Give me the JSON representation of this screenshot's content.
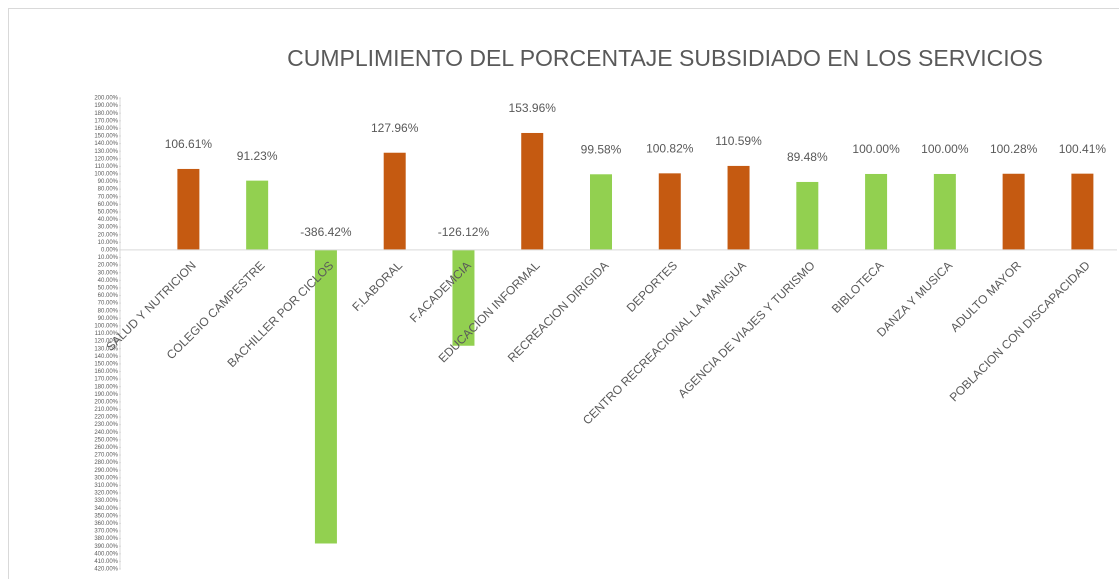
{
  "chart_data": {
    "type": "bar",
    "title": "CUMPLIMIENTO DEL PORCENTAJE SUBSIDIADO EN LOS SERVICIOS",
    "categories": [
      "SALUD Y NUTRICION",
      "COLEGIO CAMPESTRE",
      "BACHILLER POR CICLOS",
      "F.LABORAL",
      "F.ACADEMCIA",
      "EDUCACION INFORMAL",
      "RECREACION DIRIGIDA",
      "DEPORTES",
      "CENTRO RECREACIONAL LA MANIGUA",
      "AGENCIA DE VIAJES Y TURISMO",
      "BIBLOTECA",
      "DANZA Y MUSICA",
      "ADULTO MAYOR",
      "POBLACION CON DISCAPACIDAD"
    ],
    "values": [
      106.61,
      91.23,
      -386.42,
      127.96,
      -126.12,
      153.96,
      99.58,
      100.82,
      110.59,
      89.48,
      100.0,
      100.0,
      100.28,
      100.41
    ],
    "value_labels": [
      "106.61%",
      "91.23%",
      "-386.42%",
      "127.96%",
      "-126.12%",
      "153.96%",
      "99.58%",
      "100.82%",
      "110.59%",
      "89.48%",
      "100.00%",
      "100.00%",
      "100.28%",
      "100.41%"
    ],
    "colors": [
      "#c55a11",
      "#92d050",
      "#92d050",
      "#c55a11",
      "#92d050",
      "#c55a11",
      "#92d050",
      "#c55a11",
      "#c55a11",
      "#92d050",
      "#92d050",
      "#92d050",
      "#c55a11",
      "#c55a11"
    ],
    "ylim": [
      -420,
      200
    ],
    "yticks": [
      {
        "value": 200,
        "label": "200.00%"
      },
      {
        "value": 190,
        "label": "190.00%"
      },
      {
        "value": 180,
        "label": "180.00%"
      },
      {
        "value": 170,
        "label": "170.00%"
      },
      {
        "value": 160,
        "label": "160.00%"
      },
      {
        "value": 150,
        "label": "150.00%"
      },
      {
        "value": 140,
        "label": "140.00%"
      },
      {
        "value": 130,
        "label": "130.00%"
      },
      {
        "value": 120,
        "label": "120.00%"
      },
      {
        "value": 110,
        "label": "110.00%"
      },
      {
        "value": 100,
        "label": "100.00%"
      },
      {
        "value": 90,
        "label": "90.00%"
      },
      {
        "value": 80,
        "label": "80.00%"
      },
      {
        "value": 70,
        "label": "70.00%"
      },
      {
        "value": 60,
        "label": "60.00%"
      },
      {
        "value": 50,
        "label": "50.00%"
      },
      {
        "value": 40,
        "label": "40.00%"
      },
      {
        "value": 30,
        "label": "30.00%"
      },
      {
        "value": 20,
        "label": "20.00%"
      },
      {
        "value": 10,
        "label": "10.00%"
      },
      {
        "value": 0,
        "label": "0.00%"
      },
      {
        "value": -10,
        "label": "10.00%"
      },
      {
        "value": -20,
        "label": "20.00%"
      },
      {
        "value": -30,
        "label": "30.00%"
      },
      {
        "value": -40,
        "label": "40.00%"
      },
      {
        "value": -50,
        "label": "50.00%"
      },
      {
        "value": -60,
        "label": "60.00%"
      },
      {
        "value": -70,
        "label": "70.00%"
      },
      {
        "value": -80,
        "label": "80.00%"
      },
      {
        "value": -90,
        "label": "90.00%"
      },
      {
        "value": -100,
        "label": "100.00%"
      },
      {
        "value": -110,
        "label": "110.00%"
      },
      {
        "value": -120,
        "label": "120.00%"
      },
      {
        "value": -130,
        "label": "130.00%"
      },
      {
        "value": -140,
        "label": "140.00%"
      },
      {
        "value": -150,
        "label": "150.00%"
      },
      {
        "value": -160,
        "label": "160.00%"
      },
      {
        "value": -170,
        "label": "170.00%"
      },
      {
        "value": -180,
        "label": "180.00%"
      },
      {
        "value": -190,
        "label": "190.00%"
      },
      {
        "value": -200,
        "label": "200.00%"
      },
      {
        "value": -210,
        "label": "210.00%"
      },
      {
        "value": -220,
        "label": "220.00%"
      },
      {
        "value": -230,
        "label": "230.00%"
      },
      {
        "value": -240,
        "label": "240.00%"
      },
      {
        "value": -250,
        "label": "250.00%"
      },
      {
        "value": -260,
        "label": "260.00%"
      },
      {
        "value": -270,
        "label": "270.00%"
      },
      {
        "value": -280,
        "label": "280.00%"
      },
      {
        "value": -290,
        "label": "290.00%"
      },
      {
        "value": -300,
        "label": "300.00%"
      },
      {
        "value": -310,
        "label": "310.00%"
      },
      {
        "value": -320,
        "label": "320.00%"
      },
      {
        "value": -330,
        "label": "330.00%"
      },
      {
        "value": -340,
        "label": "340.00%"
      },
      {
        "value": -350,
        "label": "350.00%"
      },
      {
        "value": -360,
        "label": "360.00%"
      },
      {
        "value": -370,
        "label": "370.00%"
      },
      {
        "value": -380,
        "label": "380.00%"
      },
      {
        "value": -390,
        "label": "390.00%"
      },
      {
        "value": -400,
        "label": "400.00%"
      },
      {
        "value": -410,
        "label": "410.00%"
      },
      {
        "value": -420,
        "label": "420.00%"
      }
    ],
    "grid": false
  }
}
